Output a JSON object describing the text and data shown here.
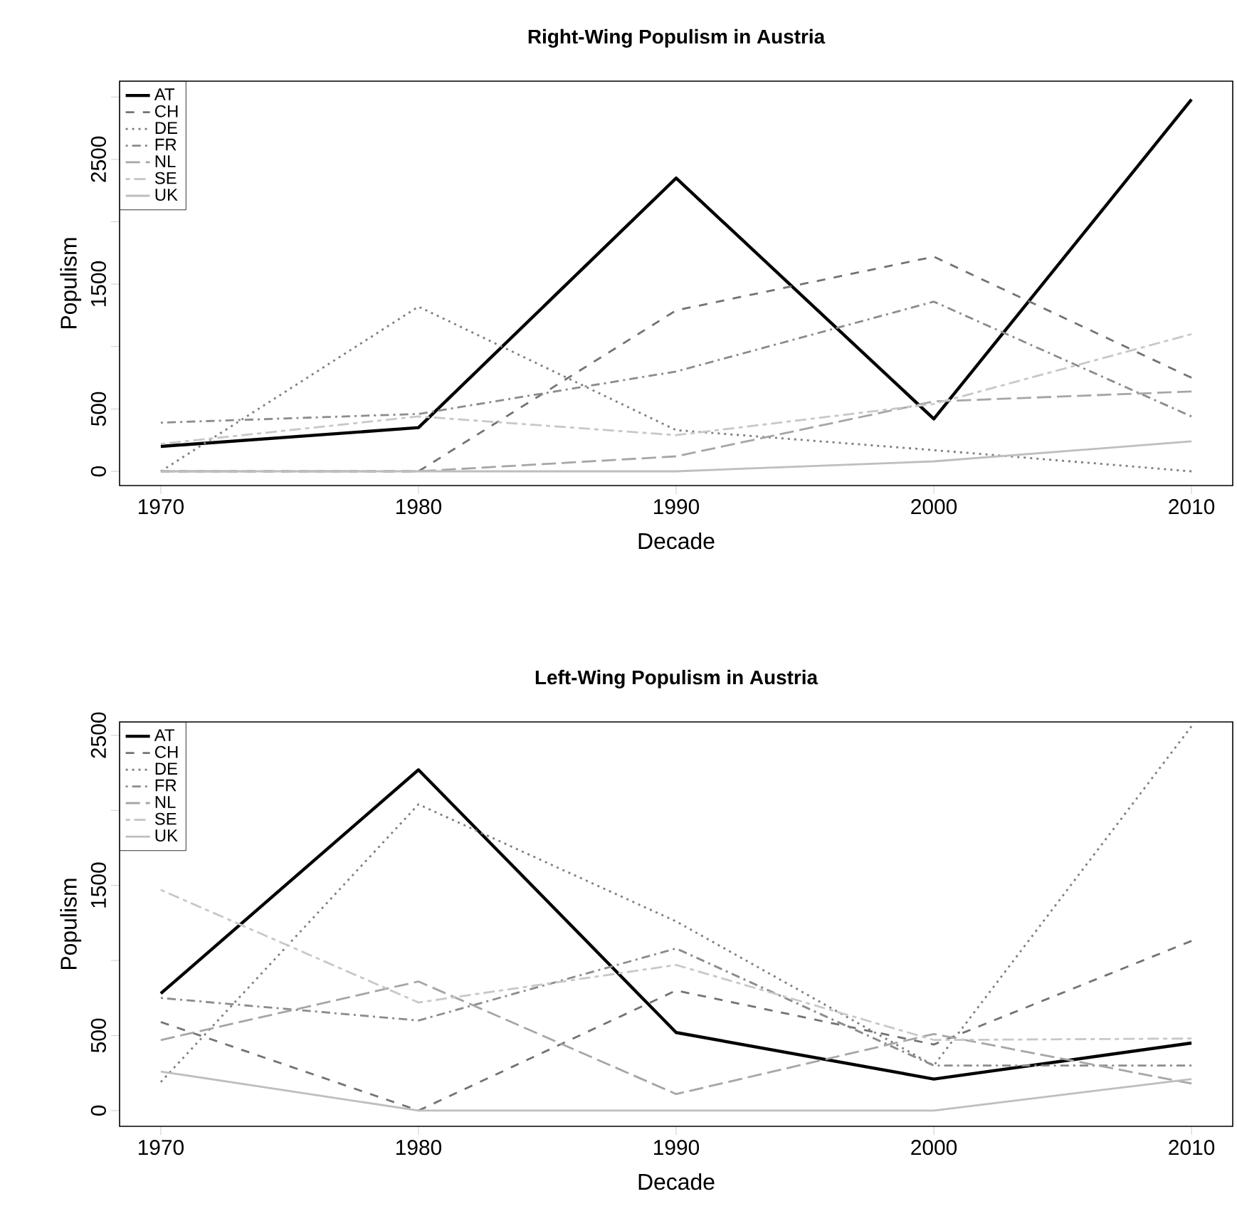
{
  "chart_data": [
    {
      "type": "line",
      "title": "Right-Wing Populism in Austria",
      "xlabel": "Decade",
      "ylabel": "Populism",
      "x": [
        1970,
        1980,
        1990,
        2000,
        2010
      ],
      "xlim": [
        1968.4,
        2011.6
      ],
      "ylim": [
        -114,
        3127
      ],
      "xticks": [
        1970,
        1980,
        1990,
        2000,
        2010
      ],
      "yticks": [
        0,
        500,
        {
          "value": 1000,
          "label": null
        },
        1500,
        {
          "value": 2000,
          "label": null
        },
        2500,
        {
          "value": 3000,
          "label": null
        }
      ],
      "legend": "top left",
      "grid": false,
      "series": [
        {
          "name": "AT",
          "color": "#000000",
          "line_style": "solid",
          "values": [
            200,
            350,
            2350,
            420,
            2980
          ]
        },
        {
          "name": "CH",
          "color": "#737373",
          "line_style": "dashed",
          "values": [
            0,
            0,
            1290,
            1720,
            750
          ]
        },
        {
          "name": "DE",
          "color": "#7f7f7f",
          "line_style": "dotted",
          "values": [
            0,
            1320,
            330,
            170,
            0
          ]
        },
        {
          "name": "FR",
          "color": "#8c8c8c",
          "line_style": "dashdot",
          "values": [
            390,
            460,
            800,
            1360,
            440
          ]
        },
        {
          "name": "NL",
          "color": "#a6a6a6",
          "line_style": "longdash",
          "values": [
            0,
            0,
            120,
            560,
            640
          ]
        },
        {
          "name": "SE",
          "color": "#c8c8c8",
          "line_style": "twodash",
          "values": [
            220,
            440,
            290,
            540,
            1100
          ]
        },
        {
          "name": "UK",
          "color": "#bebebe",
          "line_style": "solid",
          "values": [
            0,
            0,
            0,
            80,
            240
          ]
        }
      ]
    },
    {
      "type": "line",
      "title": "Left-Wing Populism in Austria",
      "xlabel": "Decade",
      "ylabel": "Populism",
      "x": [
        1970,
        1980,
        1990,
        2000,
        2010
      ],
      "xlim": [
        1968.4,
        2011.6
      ],
      "ylim": [
        -105,
        2589
      ],
      "xticks": [
        1970,
        1980,
        1990,
        2000,
        2010
      ],
      "yticks": [
        0,
        500,
        {
          "value": 1000,
          "label": null
        },
        1500,
        {
          "value": 2000,
          "label": null
        },
        2500
      ],
      "legend": "top left",
      "grid": false,
      "series": [
        {
          "name": "AT",
          "color": "#000000",
          "line_style": "solid",
          "values": [
            780,
            2270,
            520,
            210,
            450
          ]
        },
        {
          "name": "CH",
          "color": "#737373",
          "line_style": "dashed",
          "values": [
            590,
            0,
            800,
            440,
            1130
          ]
        },
        {
          "name": "DE",
          "color": "#7f7f7f",
          "line_style": "dotted",
          "values": [
            190,
            2040,
            1260,
            300,
            2560
          ]
        },
        {
          "name": "FR",
          "color": "#8c8c8c",
          "line_style": "dashdot",
          "values": [
            750,
            600,
            1080,
            300,
            300
          ]
        },
        {
          "name": "NL",
          "color": "#a6a6a6",
          "line_style": "longdash",
          "values": [
            470,
            860,
            110,
            510,
            180
          ]
        },
        {
          "name": "SE",
          "color": "#c8c8c8",
          "line_style": "twodash",
          "values": [
            1470,
            720,
            970,
            470,
            480
          ]
        },
        {
          "name": "UK",
          "color": "#bebebe",
          "line_style": "solid",
          "values": [
            260,
            0,
            0,
            0,
            210
          ]
        }
      ]
    }
  ]
}
